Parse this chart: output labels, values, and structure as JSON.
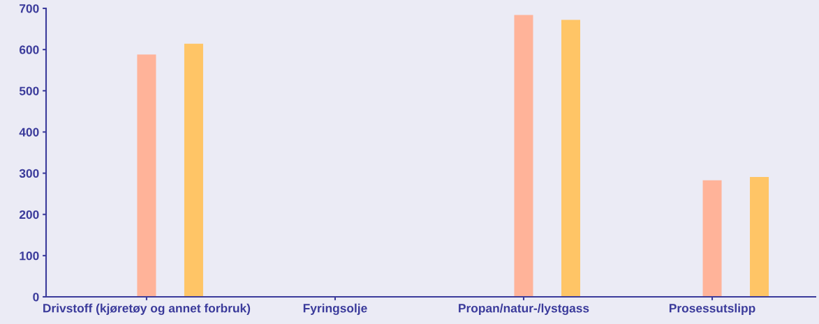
{
  "chart_data": {
    "type": "bar",
    "categories": [
      "Drivstoff (kjøretøy og annet forbruk)",
      "Fyringsolje",
      "Propan/natur-/lystgass",
      "Prosessutslipp"
    ],
    "series": [
      {
        "color": "#ffb399",
        "values": [
          588,
          0,
          684,
          283
        ]
      },
      {
        "color": "#ffc566",
        "values": [
          614,
          0,
          672,
          291
        ]
      }
    ],
    "ylim": [
      0,
      700
    ],
    "yticks": [
      0,
      100,
      200,
      300,
      400,
      500,
      600,
      700
    ],
    "grid": false,
    "legend": false
  }
}
